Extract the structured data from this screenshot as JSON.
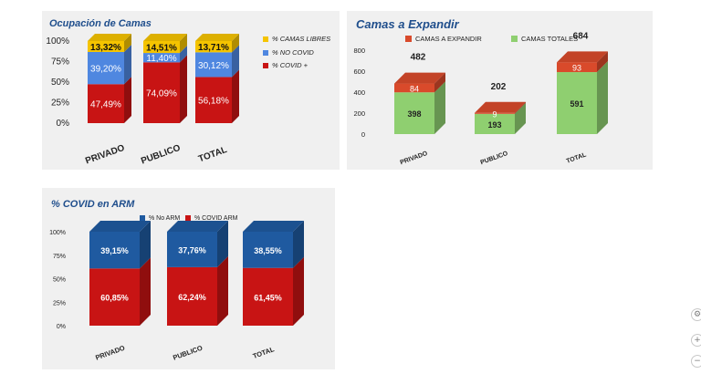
{
  "charts": {
    "c1": {
      "title": "Ocupación de Camas",
      "ticks": [
        "100%",
        "75%",
        "50%",
        "25%",
        "0%"
      ],
      "legend": [
        {
          "label": "% CAMAS LIBRES",
          "color": "#f5c400"
        },
        {
          "label": "% NO COVID",
          "color": "#4f87e0"
        },
        {
          "label": "% COVID +",
          "color": "#c81414"
        }
      ]
    },
    "c2": {
      "title": "Camas  a  Expandir",
      "ticks": [
        "800",
        "600",
        "400",
        "200",
        "0"
      ],
      "legend": [
        {
          "label": "CAMAS A EXPANDIR",
          "color": "#d94a2b"
        },
        {
          "label": "CAMAS TOTALES",
          "color": "#8fcf70"
        }
      ]
    },
    "c3": {
      "title": "% COVID en ARM",
      "ticks": [
        "100%",
        "75%",
        "50%",
        "25%",
        "0%"
      ],
      "legend": [
        {
          "label": "% No ARM",
          "color": "#1f5aa0"
        },
        {
          "label": "% COVID ARM",
          "color": "#c81414"
        }
      ]
    }
  },
  "chart_data": [
    {
      "type": "bar",
      "stacked": true,
      "title": "Ocupación de Camas",
      "categories": [
        "PRIVADO",
        "PUBLICO",
        "TOTAL"
      ],
      "ylim": [
        0,
        100
      ],
      "series": [
        {
          "name": "% COVID +",
          "color": "#c81414",
          "values": [
            47.49,
            74.09,
            56.18
          ],
          "labels": [
            "47,49%",
            "74,09%",
            "56,18%"
          ]
        },
        {
          "name": "% NO COVID",
          "color": "#4f87e0",
          "values": [
            39.2,
            11.4,
            30.12
          ],
          "labels": [
            "39,20%",
            "11,40%",
            "30,12%"
          ]
        },
        {
          "name": "% CAMAS LIBRES",
          "color": "#f5c400",
          "values": [
            13.32,
            14.51,
            13.71
          ],
          "labels": [
            "13,32%",
            "14,51%",
            "13,71%"
          ]
        }
      ]
    },
    {
      "type": "bar",
      "stacked": true,
      "title": "Camas  a  Expandir",
      "categories": [
        "PRIVADO",
        "PUBLICO",
        "TOTAL"
      ],
      "ylim": [
        0,
        800
      ],
      "totals": [
        "482",
        "202",
        "684"
      ],
      "series": [
        {
          "name": "CAMAS TOTALES",
          "color": "#8fcf70",
          "values": [
            398,
            193,
            591
          ],
          "labels": [
            "398",
            "193",
            "591"
          ]
        },
        {
          "name": "CAMAS A EXPANDIR",
          "color": "#d94a2b",
          "values": [
            84,
            9,
            93
          ],
          "labels": [
            "84",
            "9",
            "93"
          ]
        }
      ]
    },
    {
      "type": "bar",
      "stacked": true,
      "title": "% COVID en ARM",
      "categories": [
        "PRIVADO",
        "PUBLICO",
        "TOTAL"
      ],
      "ylim": [
        0,
        100
      ],
      "series": [
        {
          "name": "% COVID ARM",
          "color": "#c81414",
          "values": [
            60.85,
            62.24,
            61.45
          ],
          "labels": [
            "60,85%",
            "62,24%",
            "61,45%"
          ]
        },
        {
          "name": "% No ARM",
          "color": "#1f5aa0",
          "values": [
            39.15,
            37.76,
            38.55
          ],
          "labels": [
            "39,15%",
            "37,76%",
            "38,55%"
          ]
        }
      ]
    }
  ],
  "controls": {
    "settings_icon": "gear-icon",
    "zoom_in_label": "+",
    "zoom_out_label": "−"
  }
}
